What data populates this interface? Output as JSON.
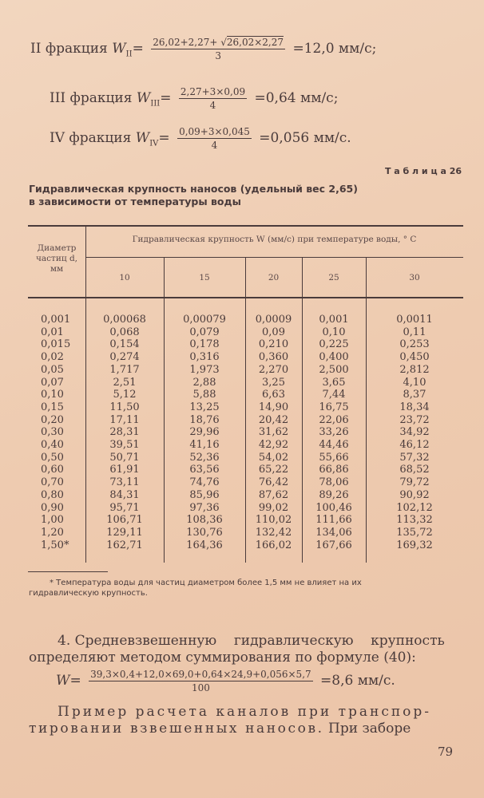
{
  "formulas": [
    {
      "label": "II фракция",
      "w": "W",
      "sub": "II",
      "num_prefix": "26,02+2,27+ √",
      "num_sqrt": "26,02×2,27",
      "den": "3",
      "result": "=12,0 мм/с;"
    },
    {
      "label": "III фракция",
      "w": "W",
      "sub": "III",
      "num": "2,27+3×0,09",
      "den": "4",
      "result": "=0,64 мм/с;"
    },
    {
      "label": "IV фракция",
      "w": "W",
      "sub": "IV",
      "num": "0,09+3×0,045",
      "den": "4",
      "result": "=0,056 мм/с."
    }
  ],
  "table": {
    "number": "Т а б л и ц а 26",
    "title_line1": "Гидравлическая крупность наносов (удельный вес 2,65)",
    "title_line2": "в зависимости от температуры воды",
    "col_d_header": [
      "Диаметр",
      "частиц d,",
      "мм"
    ],
    "group_header": "Гидравлическая крупность W (мм/с) при температуре воды, ° С",
    "temperatures": [
      "10",
      "15",
      "20",
      "25",
      "30"
    ],
    "rows": [
      [
        "0,001",
        "0,00068",
        "0,00079",
        "0,0009",
        "0,001",
        "0,0011"
      ],
      [
        "0,01",
        "0,068",
        "0,079",
        "0,09",
        "0,10",
        "0,11"
      ],
      [
        "0,015",
        "0,154",
        "0,178",
        "0,210",
        "0,225",
        "0,253"
      ],
      [
        "0,02",
        "0,274",
        "0,316",
        "0,360",
        "0,400",
        "0,450"
      ],
      [
        "0,05",
        "1,717",
        "1,973",
        "2,270",
        "2,500",
        "2,812"
      ],
      [
        "0,07",
        "2,51",
        "2,88",
        "3,25",
        "3,65",
        "4,10"
      ],
      [
        "0,10",
        "5,12",
        "5,88",
        "6,63",
        "7,44",
        "8,37"
      ],
      [
        "0,15",
        "11,50",
        "13,25",
        "14,90",
        "16,75",
        "18,34"
      ],
      [
        "0,20",
        "17,11",
        "18,76",
        "20,42",
        "22,06",
        "23,72"
      ],
      [
        "0,30",
        "28,31",
        "29,96",
        "31,62",
        "33,26",
        "34,92"
      ],
      [
        "0,40",
        "39,51",
        "41,16",
        "42,92",
        "44,46",
        "46,12"
      ],
      [
        "0,50",
        "50,71",
        "52,36",
        "54,02",
        "55,66",
        "57,32"
      ],
      [
        "0,60",
        "61,91",
        "63,56",
        "65,22",
        "66,86",
        "68,52"
      ],
      [
        "0,70",
        "73,11",
        "74,76",
        "76,42",
        "78,06",
        "79,72"
      ],
      [
        "0,80",
        "84,31",
        "85,96",
        "87,62",
        "89,26",
        "90,92"
      ],
      [
        "0,90",
        "95,71",
        "97,36",
        "99,02",
        "100,46",
        "102,12"
      ],
      [
        "1,00",
        "106,71",
        "108,36",
        "110,02",
        "111,66",
        "113,32"
      ],
      [
        "1,20",
        "129,11",
        "130,76",
        "132,42",
        "134,06",
        "135,72"
      ],
      [
        "1,50*",
        "162,71",
        "164,36",
        "166,02",
        "167,66",
        "169,32"
      ]
    ],
    "footnote_line1": "* Температура воды для частиц диаметром более 1,5 мм не влияет на их",
    "footnote_line2": "гидравлическую крупность."
  },
  "paragraph4": {
    "line1": "4. Средневзвешенную    гидравлическую    крупность",
    "line2": "определяют методом суммирования по формуле (40):"
  },
  "final_formula": {
    "w": "W",
    "num": "39,3×0,4+12,0×69,0+0,64×24,9+0,056×5,7",
    "den": "100",
    "result": "=8,6 мм/с."
  },
  "example": {
    "heading": "Пример расчета каналов при транспор-",
    "line2_spaced": "тировании взвешенных наносов.",
    "line2_rest": "При заборе"
  },
  "page_number": "79"
}
